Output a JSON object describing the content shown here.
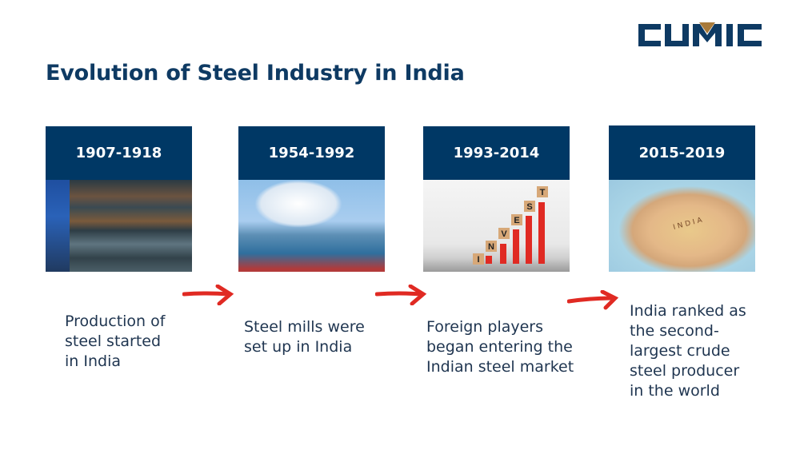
{
  "logo": {
    "text": "CUMIC",
    "colors": {
      "primary": "#0e3a63",
      "accent": "#a87a3a"
    }
  },
  "title": "Evolution of Steel Industry in India",
  "colors": {
    "header_bg": "#003865",
    "arrow": "#e02a23",
    "title": "#0e3a63"
  },
  "timeline": [
    {
      "period": "1907-1918",
      "image": "rusty steel plates",
      "description": [
        "Production of",
        "steel started",
        "in India"
      ]
    },
    {
      "period": "1954-1992",
      "image": "steel mill plant",
      "description": [
        "Steel mills were",
        "set up in India"
      ]
    },
    {
      "period": "1993-2014",
      "image": "INVEST blocks with rising red arrows",
      "description": [
        "Foreign players",
        "began entering the",
        "Indian steel market"
      ],
      "blocks": [
        "I",
        "N",
        "V",
        "E",
        "S",
        "T"
      ]
    },
    {
      "period": "2015-2019",
      "image": "map of India",
      "description": [
        "India ranked as",
        "the second-",
        "largest crude",
        "steel producer",
        "in the world"
      ],
      "map_label": "INDIA"
    }
  ]
}
